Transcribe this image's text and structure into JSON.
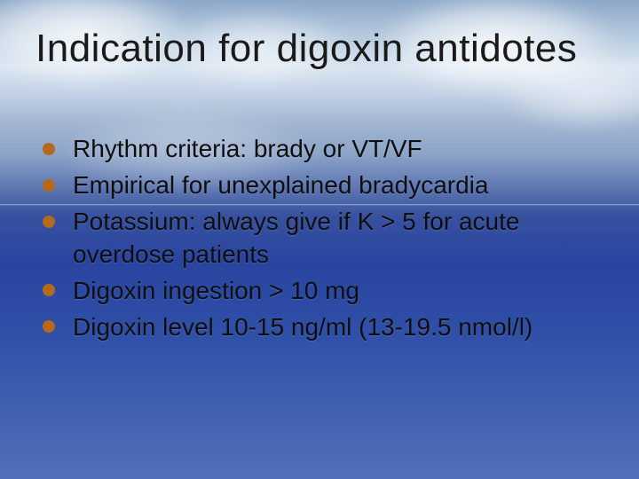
{
  "slide": {
    "title": "Indication for digoxin antidotes",
    "title_color": "#1a1a1a",
    "title_fontsize": 44,
    "bullet_color": "#b46a1a",
    "text_color": "#0e0e0e",
    "text_fontsize": 28,
    "background": {
      "type": "ocean-sky-gradient",
      "sky_top": "#8da8c8",
      "cloud_white": "#e8eef6",
      "sea_top": "#2844a0",
      "sea_bottom": "#5070b8"
    },
    "bullets": [
      "Rhythm criteria: brady or VT/VF",
      "Empirical for unexplained bradycardia",
      "Potassium: always give if K > 5 for acute overdose patients",
      "Digoxin ingestion > 10 mg",
      "Digoxin level 10-15 ng/ml (13-19.5 nmol/l)"
    ]
  }
}
